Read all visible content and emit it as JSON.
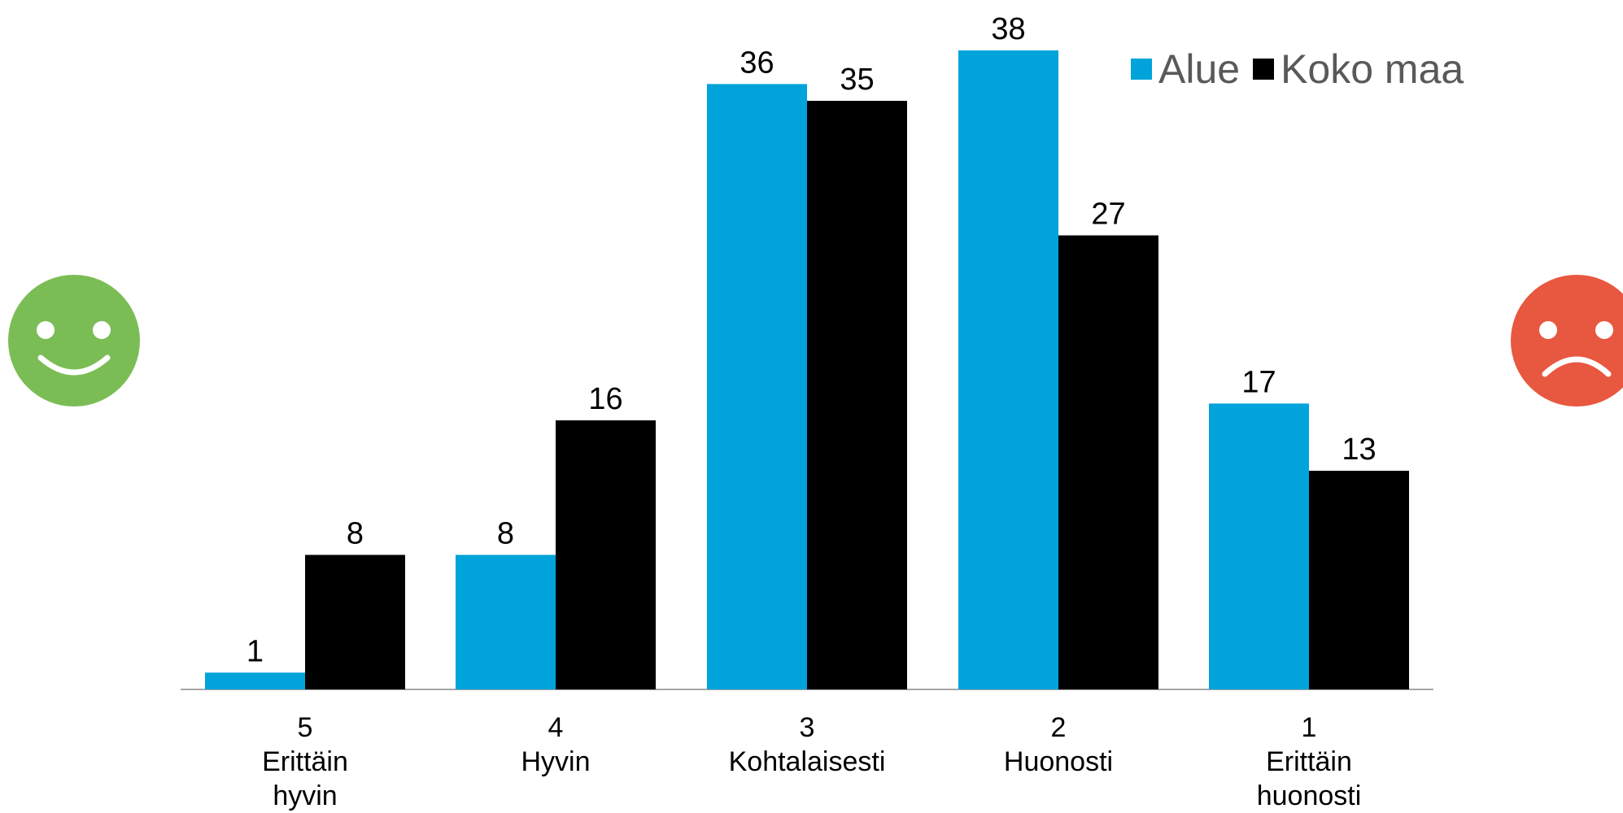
{
  "chart_data": {
    "type": "bar",
    "categories": [
      {
        "score": "5",
        "label": "Erittäin\nhyvin"
      },
      {
        "score": "4",
        "label": "Hyvin"
      },
      {
        "score": "3",
        "label": "Kohtalaisesti"
      },
      {
        "score": "2",
        "label": "Huonosti"
      },
      {
        "score": "1",
        "label": "Erittäin\nhuonosti"
      }
    ],
    "series": [
      {
        "name": "Alue",
        "color": "#00a3da",
        "values": [
          1,
          8,
          36,
          38,
          17
        ]
      },
      {
        "name": "Koko maa",
        "color": "#000000",
        "values": [
          8,
          16,
          35,
          27,
          13
        ]
      }
    ],
    "ylim": [
      0,
      38
    ],
    "grid": false,
    "legend_position": "top-right",
    "data_labels": true
  },
  "decorations": {
    "left_icon": "smiley-face-icon",
    "left_icon_color": "#7bbd55",
    "right_icon": "sad-face-icon",
    "right_icon_color": "#e8573f",
    "axis_color": "#a6a6a6"
  }
}
